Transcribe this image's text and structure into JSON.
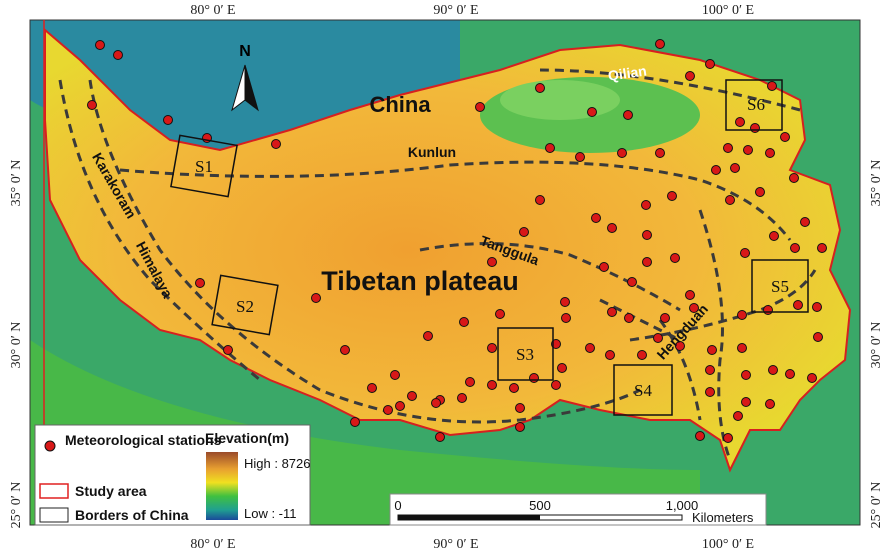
{
  "graticule": {
    "longitudes": [
      "80° 0′ E",
      "90° 0′ E",
      "100° 0′ E"
    ],
    "latitudes": [
      "35° 0′ N",
      "30° 0′ N",
      "25° 0′ N"
    ]
  },
  "north_arrow": "N",
  "regions": [
    "China",
    "Tibetan plateau"
  ],
  "mountains": [
    "Qilian",
    "Kunlun",
    "Karakoram",
    "Himalaya",
    "Tanggula",
    "Hengduan"
  ],
  "study_sites": [
    "S1",
    "S2",
    "S3",
    "S4",
    "S5",
    "S6"
  ],
  "legend": {
    "stations": "Meteorological stations",
    "study_area": "Study area",
    "borders": "Borders of China",
    "elevation_title": "Elevation(m)",
    "high": "High : 8726",
    "low": "Low : -11"
  },
  "scale_bar": {
    "ticks": [
      "0",
      "500",
      "1,000"
    ],
    "unit": "Kilometers"
  }
}
